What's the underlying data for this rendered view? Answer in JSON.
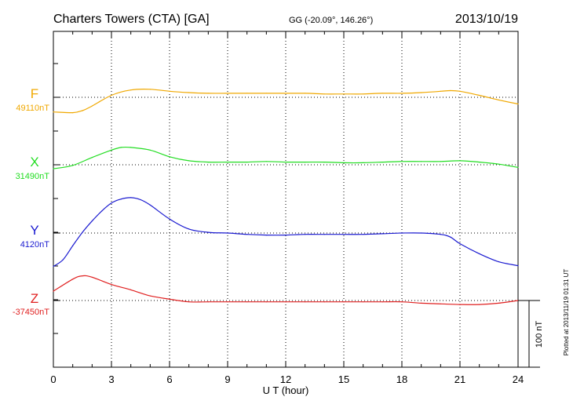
{
  "header": {
    "station": "Charters Towers (CTA)  [GA]",
    "coords": "GG (-20.09°, 146.26°)",
    "date": "2013/10/19"
  },
  "footer_note": "Plotted at 2013/11/19 01:31  UT",
  "chart_data": {
    "type": "line",
    "title": "Charters Towers (CTA)  [GA]",
    "xlabel": "U T (hour)",
    "xlim": [
      0,
      24
    ],
    "x_ticks": [
      0,
      3,
      6,
      9,
      12,
      15,
      18,
      21,
      24
    ],
    "x_tick_labels": [
      "0",
      "3",
      "6",
      "9",
      "12",
      "15",
      "18",
      "21",
      "24"
    ],
    "grid": true,
    "scale_bar": {
      "label": "100 nT",
      "value_nT": 100
    },
    "series": [
      {
        "name": "F",
        "baseline_label": "49110nT",
        "baseline": 49110,
        "color": "#f0a800",
        "x": [
          0,
          1,
          1.5,
          2,
          3,
          4,
          5,
          6,
          7,
          8,
          9,
          10,
          11,
          12,
          13,
          14,
          15,
          16,
          17,
          18,
          19,
          20,
          20.5,
          21,
          22,
          23,
          24
        ],
        "y": [
          49088,
          49087,
          49090,
          49097,
          49113,
          49121,
          49122,
          49119,
          49117,
          49116,
          49116,
          49116,
          49116,
          49116,
          49116,
          49115,
          49115,
          49115,
          49116,
          49116,
          49117,
          49119,
          49120,
          49119,
          49113,
          49106,
          49100
        ]
      },
      {
        "name": "X",
        "baseline_label": "31490nT",
        "baseline": 31490,
        "color": "#22dd22",
        "x": [
          0,
          1,
          2,
          3,
          3.5,
          4,
          5,
          6,
          7,
          8,
          9,
          10,
          11,
          12,
          13,
          14,
          15,
          16,
          17,
          18,
          19,
          20,
          21,
          22,
          23,
          24
        ],
        "y": [
          31484,
          31489,
          31501,
          31512,
          31516,
          31516,
          31512,
          31502,
          31496,
          31494,
          31494,
          31494,
          31495,
          31494,
          31494,
          31494,
          31493,
          31493,
          31494,
          31495,
          31495,
          31495,
          31496,
          31494,
          31491,
          31486
        ]
      },
      {
        "name": "Y",
        "baseline_label": "4120nT",
        "baseline": 4120,
        "color": "#1a1ad0",
        "x": [
          0,
          0.5,
          1,
          1.5,
          2,
          2.5,
          3,
          3.5,
          4,
          4.5,
          5,
          6,
          7,
          8,
          9,
          10,
          11,
          12,
          13,
          14,
          15,
          16,
          17,
          18,
          19,
          20,
          20.5,
          21,
          22,
          23,
          24
        ],
        "y": [
          4070,
          4080,
          4101,
          4121,
          4138,
          4153,
          4165,
          4171,
          4173,
          4170,
          4162,
          4141,
          4126,
          4121,
          4120,
          4118,
          4117,
          4117,
          4118,
          4118,
          4118,
          4118,
          4119,
          4120,
          4120,
          4118,
          4114,
          4104,
          4089,
          4077,
          4071
        ]
      },
      {
        "name": "Z",
        "baseline_label": "-37450nT",
        "baseline": -37450,
        "color": "#e02020",
        "x": [
          0,
          1,
          1.5,
          2,
          3,
          4,
          5,
          6,
          7,
          8,
          9,
          10,
          11,
          12,
          13,
          14,
          15,
          16,
          17,
          18,
          19,
          20,
          21,
          22,
          23,
          24
        ],
        "y": [
          -37436,
          -37418,
          -37413,
          -37415,
          -37426,
          -37434,
          -37443,
          -37448,
          -37452,
          -37452,
          -37452,
          -37452,
          -37452,
          -37452,
          -37452,
          -37452,
          -37452,
          -37452,
          -37452,
          -37452,
          -37454,
          -37455,
          -37456,
          -37456,
          -37454,
          -37450
        ]
      }
    ]
  }
}
